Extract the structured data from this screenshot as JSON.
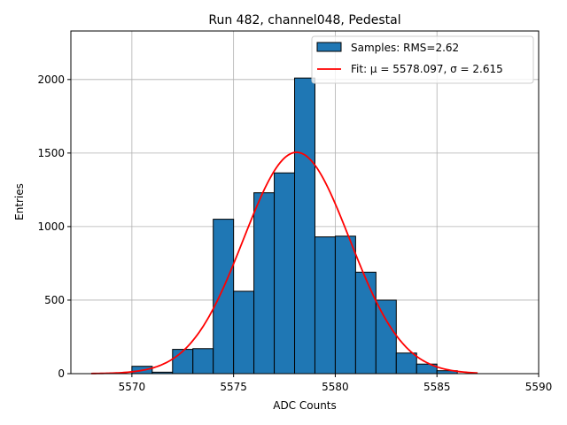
{
  "chart_data": {
    "type": "bar",
    "title": "Run 482, channel048, Pedestal",
    "xlabel": "ADC Counts",
    "ylabel": "Entries",
    "xlim": [
      5567,
      5590
    ],
    "ylim": [
      0,
      2330
    ],
    "xticks": [
      5570,
      5575,
      5580,
      5585,
      5590
    ],
    "yticks": [
      0,
      500,
      1000,
      1500,
      2000
    ],
    "grid": true,
    "legend_position": "top-right",
    "colors": {
      "bars": "#1f77b4",
      "bar_edge": "#000000",
      "fit": "#ff0000",
      "grid": "#b0b0b0"
    },
    "histogram": {
      "name": "Samples: RMS=2.62",
      "bin_width": 1,
      "bin_starts": [
        5570,
        5571,
        5572,
        5573,
        5574,
        5575,
        5576,
        5577,
        5578,
        5579,
        5580,
        5581,
        5582,
        5583,
        5584,
        5585
      ],
      "values": [
        50,
        10,
        165,
        170,
        1050,
        560,
        1230,
        1365,
        2010,
        930,
        935,
        690,
        500,
        140,
        65,
        20
      ]
    },
    "fit": {
      "name": "Fit: μ = 5578.097, σ = 2.615",
      "mu": 5578.097,
      "sigma": 2.615,
      "peak": 1505,
      "x_range": [
        5568,
        5587
      ]
    }
  }
}
